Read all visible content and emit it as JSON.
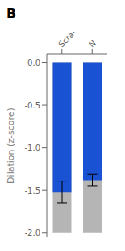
{
  "chart_data": {
    "type": "bar",
    "title": "B",
    "ylabel": "Dilation (z-score)",
    "categories": [
      "Scra-",
      "N"
    ],
    "series": [
      {
        "color": "#b5b5b5",
        "values": [
          -2.0,
          -2.0
        ]
      },
      {
        "color": "#1a52d4",
        "values": [
          -1.52,
          -1.38
        ],
        "errors": [
          0.13,
          0.07
        ]
      }
    ],
    "ylim": [
      -2.05,
      0.1
    ],
    "yticks": [
      {
        "value": 0.0,
        "label": "0.0"
      },
      -0.5,
      {
        "value": -1.0,
        "label": "-1.0"
      },
      -1.5,
      {
        "value": -2.0,
        "label": "-2.0"
      }
    ],
    "grid": false
  }
}
